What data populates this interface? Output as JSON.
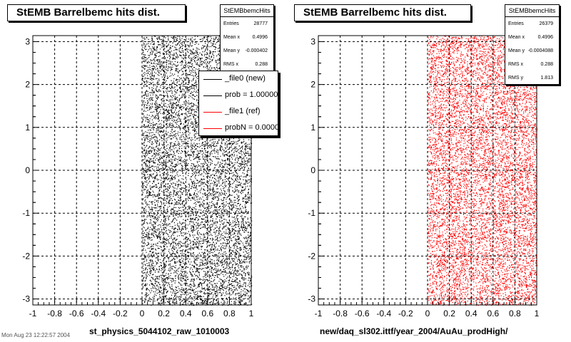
{
  "colors": {
    "new": "#000000",
    "ref": "#ff0000",
    "background": "#ffffff"
  },
  "left_panel": {
    "title": "StEMB Barrelbemc hits dist.",
    "xtitle": "st_physics_5044102_raw_1010003",
    "stats": {
      "name": "StEMBbemcHits",
      "rows": [
        {
          "label": "Entries",
          "value": "28777"
        },
        {
          "label": "Mean x",
          "value": "0.4996"
        },
        {
          "label": "Mean y",
          "value": "-0.000402"
        },
        {
          "label": "RMS x",
          "value": "0.288"
        }
      ]
    },
    "legend": [
      {
        "text": "_file0 (new)",
        "color": "#000000"
      },
      {
        "text": "prob = 1.000000",
        "color": "#000000"
      },
      {
        "text": "_file1 (ref)",
        "color": "#ff0000"
      },
      {
        "text": "probN = 0.000000",
        "color": "#ff0000"
      }
    ]
  },
  "right_panel": {
    "title": "StEMB Barrelbemc hits dist.",
    "xtitle": "new/daq_sl302.ittf/year_2004/AuAu_prodHigh/",
    "stats": {
      "name": "StEMBbemcHits",
      "rows": [
        {
          "label": "Entries",
          "value": "26379"
        },
        {
          "label": "Mean x",
          "value": "0.4996"
        },
        {
          "label": "Mean y",
          "value": "-0.0004088"
        },
        {
          "label": "RMS x",
          "value": "0.288"
        },
        {
          "label": "RMS y",
          "value": "1.813"
        }
      ]
    }
  },
  "stamp": "Mon Aug 23 12:22:57 2004",
  "chart_data": [
    {
      "type": "scatter",
      "title": "StEMB Barrelbemc hits dist.",
      "xlabel": "st_physics_5044102_raw_1010003",
      "ylabel": "",
      "xlim": [
        -1,
        1
      ],
      "ylim": [
        -3.14,
        3.14
      ],
      "xticks": [
        "-1",
        "-0.8",
        "-0.6",
        "-0.4",
        "-0.2",
        "0",
        "0.2",
        "0.4",
        "0.6",
        "0.8",
        "1"
      ],
      "yticks": [
        "-3",
        "-2",
        "-1",
        "0",
        "1",
        "2",
        "3"
      ],
      "grid": true,
      "series": [
        {
          "name": "_file0 (new)",
          "color": "#000000",
          "entries": 28777,
          "x_range": [
            0,
            1
          ],
          "y_range": [
            -3.14,
            3.14
          ]
        },
        {
          "name": "_file1 (ref)",
          "color": "#ff0000",
          "entries": 0,
          "x_range": [
            0,
            1
          ],
          "y_range": [
            -3.14,
            3.14
          ]
        }
      ]
    },
    {
      "type": "scatter",
      "title": "StEMB Barrelbemc hits dist.",
      "xlabel": "new/daq_sl302.ittf/year_2004/AuAu_prodHigh/",
      "ylabel": "",
      "xlim": [
        -1,
        1
      ],
      "ylim": [
        -3.14,
        3.14
      ],
      "xticks": [
        "-1",
        "-0.8",
        "-0.6",
        "-0.4",
        "-0.2",
        "0",
        "0.2",
        "0.4",
        "0.6",
        "0.8",
        "1"
      ],
      "yticks": [
        "-3",
        "-2",
        "-1",
        "0",
        "1",
        "2",
        "3"
      ],
      "grid": true,
      "series": [
        {
          "name": "",
          "color": "#ff0000",
          "entries": 26379,
          "x_range": [
            0,
            1
          ],
          "y_range": [
            -3.14,
            3.14
          ]
        }
      ]
    }
  ]
}
